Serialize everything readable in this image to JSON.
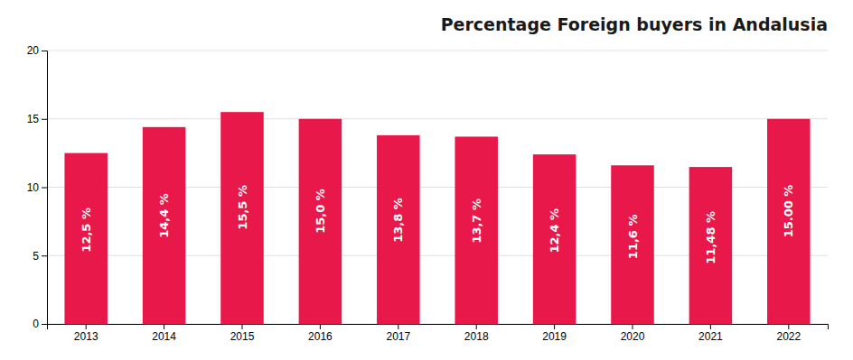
{
  "chart_data": {
    "type": "bar",
    "title": "Percentage Foreign buyers in Andalusia",
    "categories": [
      "2013",
      "2014",
      "2015",
      "2016",
      "2017",
      "2018",
      "2019",
      "2020",
      "2021",
      "2022"
    ],
    "values": [
      12.5,
      14.4,
      15.5,
      15.0,
      13.8,
      13.7,
      12.4,
      11.6,
      11.48,
      15.0
    ],
    "value_labels": [
      "12,5 %",
      "14,4 %",
      "15,5 %",
      "15,0 %",
      "13,8 %",
      "13,7 %",
      "12,4 %",
      "11,6 %",
      "11,48 %",
      "15.00 %"
    ],
    "data_labels": true,
    "color": "#E8184A",
    "ylim": [
      0,
      20
    ],
    "yticks": [
      0,
      5,
      10,
      15,
      20
    ],
    "grid": true
  }
}
